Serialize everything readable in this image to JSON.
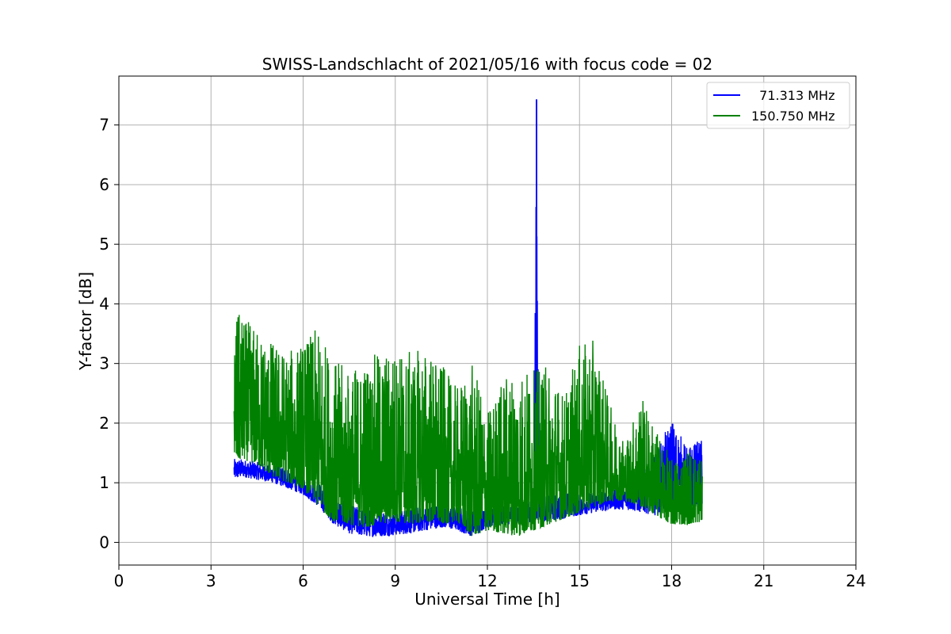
{
  "chart_data": {
    "type": "line",
    "title": "SWISS-Landschlacht of 2021/05/16 with focus code = 02",
    "xlabel": "Universal Time [h]",
    "ylabel": "Y-factor [dB]",
    "xlim": [
      0,
      24
    ],
    "ylim": [
      -0.38,
      7.82
    ],
    "xticks": [
      0,
      3,
      6,
      9,
      12,
      15,
      18,
      21,
      24
    ],
    "yticks": [
      0,
      1,
      2,
      3,
      4,
      5,
      6,
      7
    ],
    "grid": true,
    "legend_position": "top-right",
    "series": [
      {
        "name": "  71.313 MHz",
        "color": "#0000ff",
        "x": [
          3.75,
          4.0,
          4.5,
          5.0,
          5.5,
          6.0,
          6.5,
          7.0,
          7.5,
          8.0,
          8.5,
          9.0,
          9.5,
          10.0,
          10.5,
          11.0,
          11.5,
          12.0,
          12.5,
          13.0,
          13.5,
          13.6,
          13.7,
          14.0,
          14.5,
          15.0,
          15.5,
          16.0,
          16.5,
          17.0,
          17.5,
          18.0,
          18.5,
          19.0
        ],
        "low": [
          1.05,
          1.1,
          1.05,
          1.0,
          0.9,
          0.8,
          0.6,
          0.3,
          0.15,
          0.1,
          0.1,
          0.12,
          0.15,
          0.2,
          0.25,
          0.2,
          0.1,
          0.25,
          0.3,
          0.3,
          0.35,
          0.4,
          0.35,
          0.35,
          0.4,
          0.45,
          0.5,
          0.55,
          0.55,
          0.5,
          0.45,
          0.5,
          0.55,
          0.6
        ],
        "high": [
          1.4,
          1.4,
          1.35,
          1.3,
          1.25,
          1.1,
          1.0,
          0.8,
          0.65,
          0.55,
          0.55,
          0.5,
          0.6,
          0.6,
          0.65,
          0.6,
          0.55,
          0.55,
          0.6,
          0.65,
          0.7,
          7.43,
          0.75,
          0.8,
          0.85,
          0.85,
          0.85,
          0.9,
          0.95,
          1.1,
          1.5,
          2.1,
          1.6,
          1.75
        ]
      },
      {
        "name": "150.750 MHz",
        "color": "#008000",
        "x": [
          3.75,
          4.0,
          4.5,
          5.0,
          5.5,
          6.0,
          6.5,
          7.0,
          7.5,
          8.0,
          8.5,
          9.0,
          9.5,
          10.0,
          10.5,
          11.0,
          11.5,
          12.0,
          12.5,
          13.0,
          13.5,
          14.0,
          14.5,
          15.0,
          15.5,
          16.0,
          16.5,
          17.0,
          17.5,
          18.0,
          18.5,
          19.0
        ],
        "low": [
          1.3,
          1.4,
          1.3,
          1.1,
          1.0,
          0.9,
          0.6,
          0.35,
          0.3,
          0.25,
          0.3,
          0.35,
          0.3,
          0.35,
          0.3,
          0.35,
          0.1,
          0.2,
          0.15,
          0.1,
          0.2,
          0.3,
          0.4,
          0.5,
          0.6,
          0.7,
          0.7,
          0.6,
          0.45,
          0.3,
          0.3,
          0.35
        ],
        "high": [
          3.9,
          3.8,
          3.6,
          3.4,
          3.2,
          3.4,
          3.6,
          3.1,
          2.9,
          3.1,
          3.2,
          3.3,
          3.2,
          3.3,
          3.0,
          2.6,
          3.0,
          2.2,
          2.8,
          3.0,
          2.9,
          3.0,
          2.5,
          3.3,
          3.4,
          2.3,
          1.7,
          2.5,
          1.9,
          1.4,
          1.6,
          1.5
        ]
      }
    ]
  }
}
